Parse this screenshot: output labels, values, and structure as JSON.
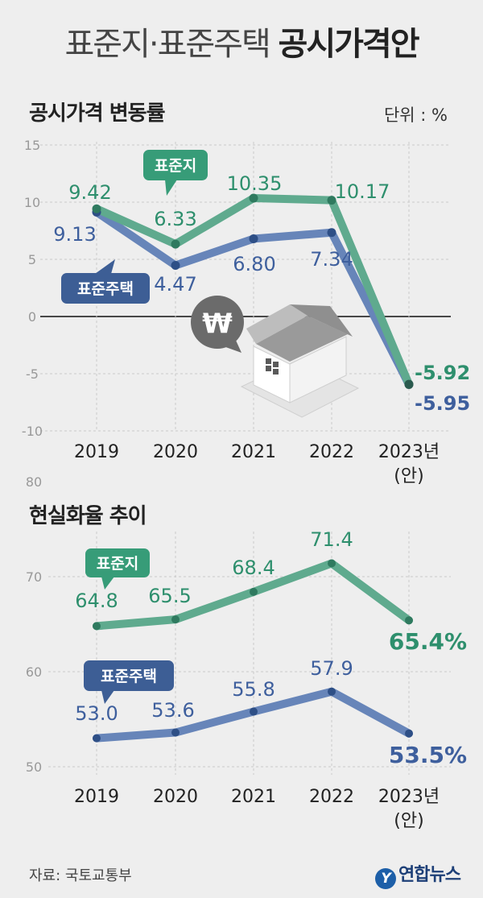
{
  "header": {
    "title_light": "표준지·표준주택",
    "title_bold": "공시가격안"
  },
  "unit_label": "단위 : %",
  "source": "자료: 국토교통부",
  "brand": {
    "logo_glyph": "Y",
    "name": "연합뉴스"
  },
  "colors": {
    "green": "#5faa8e",
    "green_text": "#2e8f6d",
    "blue": "#6785b9",
    "blue_text": "#3e5f9d",
    "dark_node": "#2a5a4e",
    "label_green_bg": "#379c78",
    "label_blue_bg": "#3d5e95"
  },
  "chart_data": [
    {
      "type": "line",
      "title": "공시가격 변동률",
      "unit": "%",
      "categories": [
        "2019",
        "2020",
        "2021",
        "2022",
        "2023년"
      ],
      "category_sub": [
        "",
        "",
        "",
        "",
        "(안)"
      ],
      "ylim": [
        -10,
        15
      ],
      "yticks": [
        "15",
        "10",
        "5",
        "0",
        "-5",
        "-10"
      ],
      "series": [
        {
          "name": "표준지",
          "values": [
            9.42,
            6.33,
            10.35,
            10.17,
            -5.92
          ],
          "labels": [
            "9.42",
            "6.33",
            "10.35",
            "10.17",
            "-5.92"
          ]
        },
        {
          "name": "표준주택",
          "values": [
            9.13,
            4.47,
            6.8,
            7.34,
            -5.95
          ],
          "labels": [
            "9.13",
            "4.47",
            "6.80",
            "7.34",
            "-5.95"
          ]
        }
      ]
    },
    {
      "type": "line",
      "title": "현실화율 추이",
      "unit": "%",
      "categories": [
        "2019",
        "2020",
        "2021",
        "2022",
        "2023년"
      ],
      "category_sub": [
        "",
        "",
        "",
        "",
        "(안)"
      ],
      "ylim": [
        50,
        80
      ],
      "yticks": [
        "80",
        "70",
        "60",
        "50"
      ],
      "series": [
        {
          "name": "표준지",
          "values": [
            64.8,
            65.5,
            68.4,
            71.4,
            65.4
          ],
          "labels": [
            "64.8",
            "65.5",
            "68.4",
            "71.4",
            "65.4%"
          ]
        },
        {
          "name": "표준주택",
          "values": [
            53.0,
            53.6,
            55.8,
            57.9,
            53.5
          ],
          "labels": [
            "53.0",
            "53.6",
            "55.8",
            "57.9",
            "53.5%"
          ]
        }
      ]
    }
  ]
}
